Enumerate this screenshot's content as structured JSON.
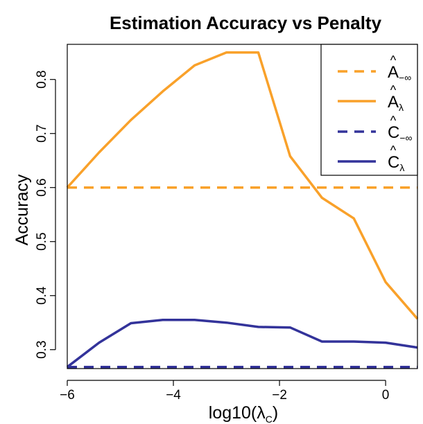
{
  "chart_data": {
    "type": "line",
    "title": "Estimation Accuracy vs Penalty",
    "xlabel": "log10(λ",
    "xlabel_sub": "C",
    "xlabel_close": ")",
    "ylabel": "Accuracy",
    "xlim": [
      -6,
      0.6
    ],
    "ylim": [
      0.265,
      0.865
    ],
    "xticks": [
      -6,
      -4,
      -2,
      0
    ],
    "xtick_labels": [
      "−6",
      "−4",
      "−2",
      "0"
    ],
    "yticks": [
      0.3,
      0.4,
      0.5,
      0.6,
      0.7,
      0.8
    ],
    "ytick_labels": [
      "0.3",
      "0.4",
      "0.5",
      "0.6",
      "0.7",
      "0.8"
    ],
    "grid": false,
    "legend_position": "top-right",
    "series": [
      {
        "legend_main": "A",
        "legend_sub": "−∞",
        "color": "#F9A12A",
        "dash": "dashed",
        "x": [
          -6,
          0.6
        ],
        "y": [
          0.6,
          0.6
        ]
      },
      {
        "legend_main": "A",
        "legend_sub": "λ",
        "color": "#F9A12A",
        "dash": "solid",
        "x": [
          -6,
          -5.4,
          -4.8,
          -4.2,
          -3.6,
          -3.0,
          -2.4,
          -1.8,
          -1.2,
          -0.6,
          0,
          0.6
        ],
        "y": [
          0.6,
          0.665,
          0.725,
          0.778,
          0.826,
          0.85,
          0.85,
          0.658,
          0.581,
          0.543,
          0.425,
          0.357
        ]
      },
      {
        "legend_main": "C",
        "legend_sub": "−∞",
        "color": "#33339A",
        "dash": "dashed",
        "x": [
          -6,
          0.6
        ],
        "y": [
          0.268,
          0.268
        ]
      },
      {
        "legend_main": "C",
        "legend_sub": "λ",
        "color": "#33339A",
        "dash": "solid",
        "x": [
          -6,
          -5.4,
          -4.8,
          -4.2,
          -3.6,
          -3.0,
          -2.4,
          -1.8,
          -1.2,
          -0.6,
          0,
          0.6
        ],
        "y": [
          0.268,
          0.313,
          0.349,
          0.355,
          0.355,
          0.35,
          0.342,
          0.341,
          0.315,
          0.315,
          0.313,
          0.304
        ]
      }
    ]
  }
}
